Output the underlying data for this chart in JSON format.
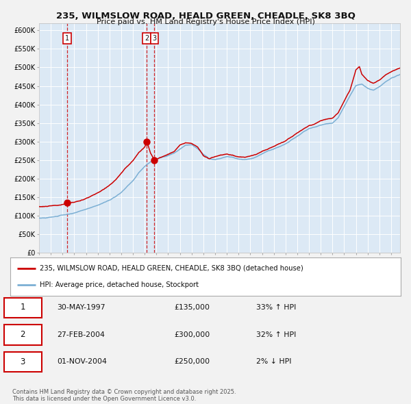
{
  "title_line1": "235, WILMSLOW ROAD, HEALD GREEN, CHEADLE, SK8 3BQ",
  "title_line2": "Price paid vs. HM Land Registry's House Price Index (HPI)",
  "ylim": [
    0,
    620000
  ],
  "yticks": [
    0,
    50000,
    100000,
    150000,
    200000,
    250000,
    300000,
    350000,
    400000,
    450000,
    500000,
    550000,
    600000
  ],
  "ytick_labels": [
    "£0",
    "£50K",
    "£100K",
    "£150K",
    "£200K",
    "£250K",
    "£300K",
    "£350K",
    "£400K",
    "£450K",
    "£500K",
    "£550K",
    "£600K"
  ],
  "background_color": "#dce9f5",
  "fig_bg_color": "#f2f2f2",
  "red_color": "#cc0000",
  "blue_color": "#7bafd4",
  "grid_color": "#ffffff",
  "legend_label_red": "235, WILMSLOW ROAD, HEALD GREEN, CHEADLE, SK8 3BQ (detached house)",
  "legend_label_blue": "HPI: Average price, detached house, Stockport",
  "table_rows": [
    {
      "num": "1",
      "date": "30-MAY-1997",
      "price": "£135,000",
      "change": "33% ↑ HPI"
    },
    {
      "num": "2",
      "date": "27-FEB-2004",
      "price": "£300,000",
      "change": "32% ↑ HPI"
    },
    {
      "num": "3",
      "date": "01-NOV-2004",
      "price": "£250,000",
      "change": "2% ↓ HPI"
    }
  ],
  "footnote": "Contains HM Land Registry data © Crown copyright and database right 2025.\nThis data is licensed under the Open Government Licence v3.0.",
  "xstart": 1995.0,
  "xend": 2025.75,
  "sale_years": [
    1997.415,
    2004.163,
    2004.835
  ],
  "sale_prices": [
    135000,
    300000,
    250000
  ],
  "sale_labels": [
    "1",
    "2",
    "3"
  ]
}
